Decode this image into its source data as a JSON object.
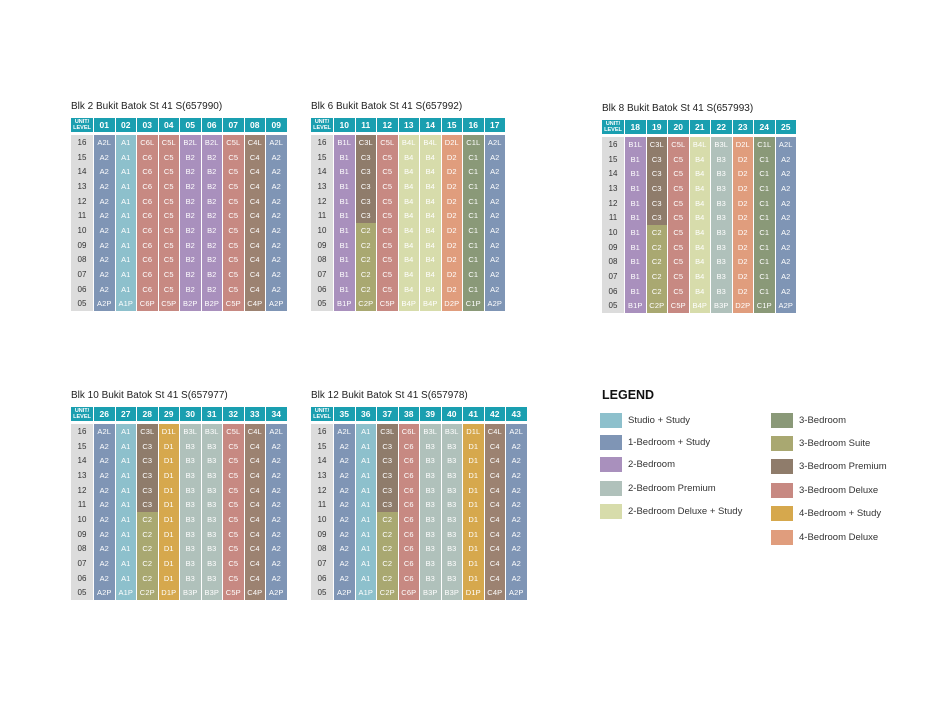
{
  "colors": {
    "A1": "#8dc0cc",
    "A2": "#7f95b5",
    "B1": "#a990bd",
    "B2": "#a990bd",
    "B3": "#b0c1bb",
    "B4": "#d7dcab",
    "C1": "#8a9978",
    "C2": "#a9a871",
    "C3": "#8f7c6b",
    "C4": "#9c8271",
    "C5": "#c78982",
    "C6": "#c78982",
    "D1": "#d6a84d",
    "D2": "#e09d7d"
  },
  "chart_data": {
    "type": "table",
    "column_header_label": "UNIT/\nLEVEL",
    "levels": [
      "16",
      "15",
      "14",
      "13",
      "12",
      "11",
      "10",
      "09",
      "08",
      "07",
      "06",
      "05"
    ],
    "blocks": [
      {
        "title": "Blk 2 Bukit Batok St 41 S(657990)",
        "units": [
          "01",
          "02",
          "03",
          "04",
          "05",
          "06",
          "07",
          "08",
          "09"
        ],
        "top": [
          "A2L",
          "A1",
          "C6L",
          "C5L",
          "B2L",
          "B2L",
          "C5L",
          "C4L",
          "A2L"
        ],
        "mid": [
          "A2",
          "A1",
          "C6",
          "C5",
          "B2",
          "B2",
          "C5",
          "C4",
          "A2"
        ],
        "bottom": [
          "A2P",
          "A1P",
          "C6P",
          "C5P",
          "B2P",
          "B2P",
          "C5P",
          "C4P",
          "A2P"
        ],
        "overrides": []
      },
      {
        "title": "Blk 6 Bukit Batok St 41 S(657992)",
        "units": [
          "10",
          "11",
          "12",
          "13",
          "14",
          "15",
          "16",
          "17"
        ],
        "top": [
          "B1L",
          "C3L",
          "C5L",
          "B4L",
          "B4L",
          "D2L",
          "C1L",
          "A2L"
        ],
        "mid": [
          "B1",
          "C3",
          "C5",
          "B4",
          "B4",
          "D2",
          "C1",
          "A2"
        ],
        "bottom": [
          "B1P",
          "C2P",
          "C5P",
          "B4P",
          "B4P",
          "D2P",
          "C1P",
          "A2P"
        ],
        "overrides": [
          {
            "col": 1,
            "from": 6,
            "to": 10,
            "value": "C2"
          }
        ]
      },
      {
        "title": "Blk 8 Bukit Batok St 41 S(657993)",
        "units": [
          "18",
          "19",
          "20",
          "21",
          "22",
          "23",
          "24",
          "25"
        ],
        "top": [
          "B1L",
          "C3L",
          "C5L",
          "B4L",
          "B3L",
          "D2L",
          "C1L",
          "A2L"
        ],
        "mid": [
          "B1",
          "C3",
          "C5",
          "B4",
          "B3",
          "D2",
          "C1",
          "A2"
        ],
        "bottom": [
          "B1P",
          "C2P",
          "C5P",
          "B4P",
          "B3P",
          "D2P",
          "C1P",
          "A2P"
        ],
        "overrides": [
          {
            "col": 1,
            "from": 6,
            "to": 10,
            "value": "C2"
          }
        ]
      },
      {
        "title": "Blk 10 Bukit Batok St 41 S(657977)",
        "units": [
          "26",
          "27",
          "28",
          "29",
          "30",
          "31",
          "32",
          "33",
          "34"
        ],
        "top": [
          "A2L",
          "A1",
          "C3L",
          "D1L",
          "B3L",
          "B3L",
          "C5L",
          "C4L",
          "A2L"
        ],
        "mid": [
          "A2",
          "A1",
          "C3",
          "D1",
          "B3",
          "B3",
          "C5",
          "C4",
          "A2"
        ],
        "bottom": [
          "A2P",
          "A1P",
          "C2P",
          "D1P",
          "B3P",
          "B3P",
          "C5P",
          "C4P",
          "A2P"
        ],
        "overrides": [
          {
            "col": 2,
            "from": 6,
            "to": 10,
            "value": "C2"
          }
        ]
      },
      {
        "title": "Blk 12 Bukit Batok St 41 S(657978)",
        "units": [
          "35",
          "36",
          "37",
          "38",
          "39",
          "40",
          "41",
          "42",
          "43"
        ],
        "top": [
          "A2L",
          "A1",
          "C3L",
          "C6L",
          "B3L",
          "B3L",
          "D1L",
          "C4L",
          "A2L"
        ],
        "mid": [
          "A2",
          "A1",
          "C3",
          "C6",
          "B3",
          "B3",
          "D1",
          "C4",
          "A2"
        ],
        "bottom": [
          "A2P",
          "A1P",
          "C2P",
          "C6P",
          "B3P",
          "B3P",
          "D1P",
          "C4P",
          "A2P"
        ],
        "overrides": [
          {
            "col": 2,
            "from": 6,
            "to": 10,
            "value": "C2"
          }
        ]
      }
    ]
  },
  "legend": {
    "title": "LEGEND",
    "items": [
      {
        "label": "Studio + Study",
        "color": "#8dc0cc"
      },
      {
        "label": "1-Bedroom + Study",
        "color": "#7f95b5"
      },
      {
        "label": "2-Bedroom",
        "color": "#a990bd"
      },
      {
        "label": "2-Bedroom Premium",
        "color": "#b0c1bb"
      },
      {
        "label": "2-Bedroom Deluxe + Study",
        "color": "#d7dcab"
      },
      {
        "label": "3-Bedroom",
        "color": "#8a9978"
      },
      {
        "label": "3-Bedroom Suite",
        "color": "#a9a871"
      },
      {
        "label": "3-Bedroom Premium",
        "color": "#8f7c6b"
      },
      {
        "label": "3-Bedroom Deluxe",
        "color": "#c78982"
      },
      {
        "label": "4-Bedroom + Study",
        "color": "#d6a84d"
      },
      {
        "label": "4-Bedroom Deluxe",
        "color": "#e09d7d"
      }
    ]
  }
}
